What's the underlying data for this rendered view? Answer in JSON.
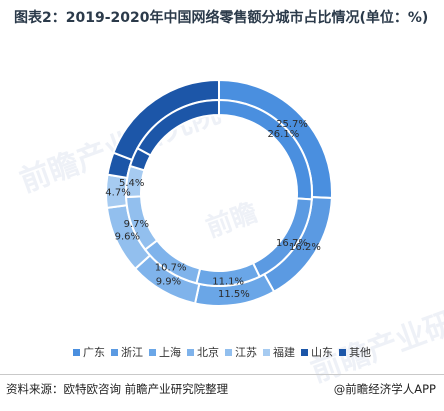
{
  "title": "图表2：2019-2020年中国网络零售额分城市占比情况(单位：%)",
  "source_text": "资料来源：欧特欧咨询 前瞻产业研究院整理",
  "brand_text": "@前瞻经济学人APP",
  "watermark_text": "前瞻产业研究院",
  "watermark_text_2": "前瞻",
  "chart_data": {
    "type": "donut",
    "title": "图表2：2019-2020年中国网络零售额分城市占比情况(单位：%)",
    "categories": [
      "广东",
      "浙江",
      "上海",
      "北京",
      "江苏",
      "福建",
      "山东",
      "其他"
    ],
    "colors": [
      "#4a8fdf",
      "#5b9ae2",
      "#6aa6e7",
      "#7fb3eb",
      "#92bfee",
      "#a6cbf1",
      "#1c56a8",
      "#1c56a8"
    ],
    "series": [
      {
        "ring": "outer",
        "values": [
          25.7,
          16.2,
          11.5,
          9.9,
          9.6,
          4.7,
          3.2,
          19.2
        ]
      },
      {
        "ring": "inner",
        "values": [
          26.1,
          16.7,
          11.1,
          10.7,
          9.7,
          5.4,
          3.3,
          17.0
        ]
      }
    ],
    "data_labels": [
      {
        "text": "25.7%"
      },
      {
        "text": "26.1%"
      },
      {
        "text": "16.2%"
      },
      {
        "text": "16.7%"
      },
      {
        "text": "11.5%"
      },
      {
        "text": "11.1%"
      },
      {
        "text": "9.9%"
      },
      {
        "text": "10.7%"
      },
      {
        "text": "9.6%"
      },
      {
        "text": "9.7%"
      },
      {
        "text": "4.7%"
      },
      {
        "text": "5.4%"
      }
    ],
    "legend_position": "bottom"
  }
}
